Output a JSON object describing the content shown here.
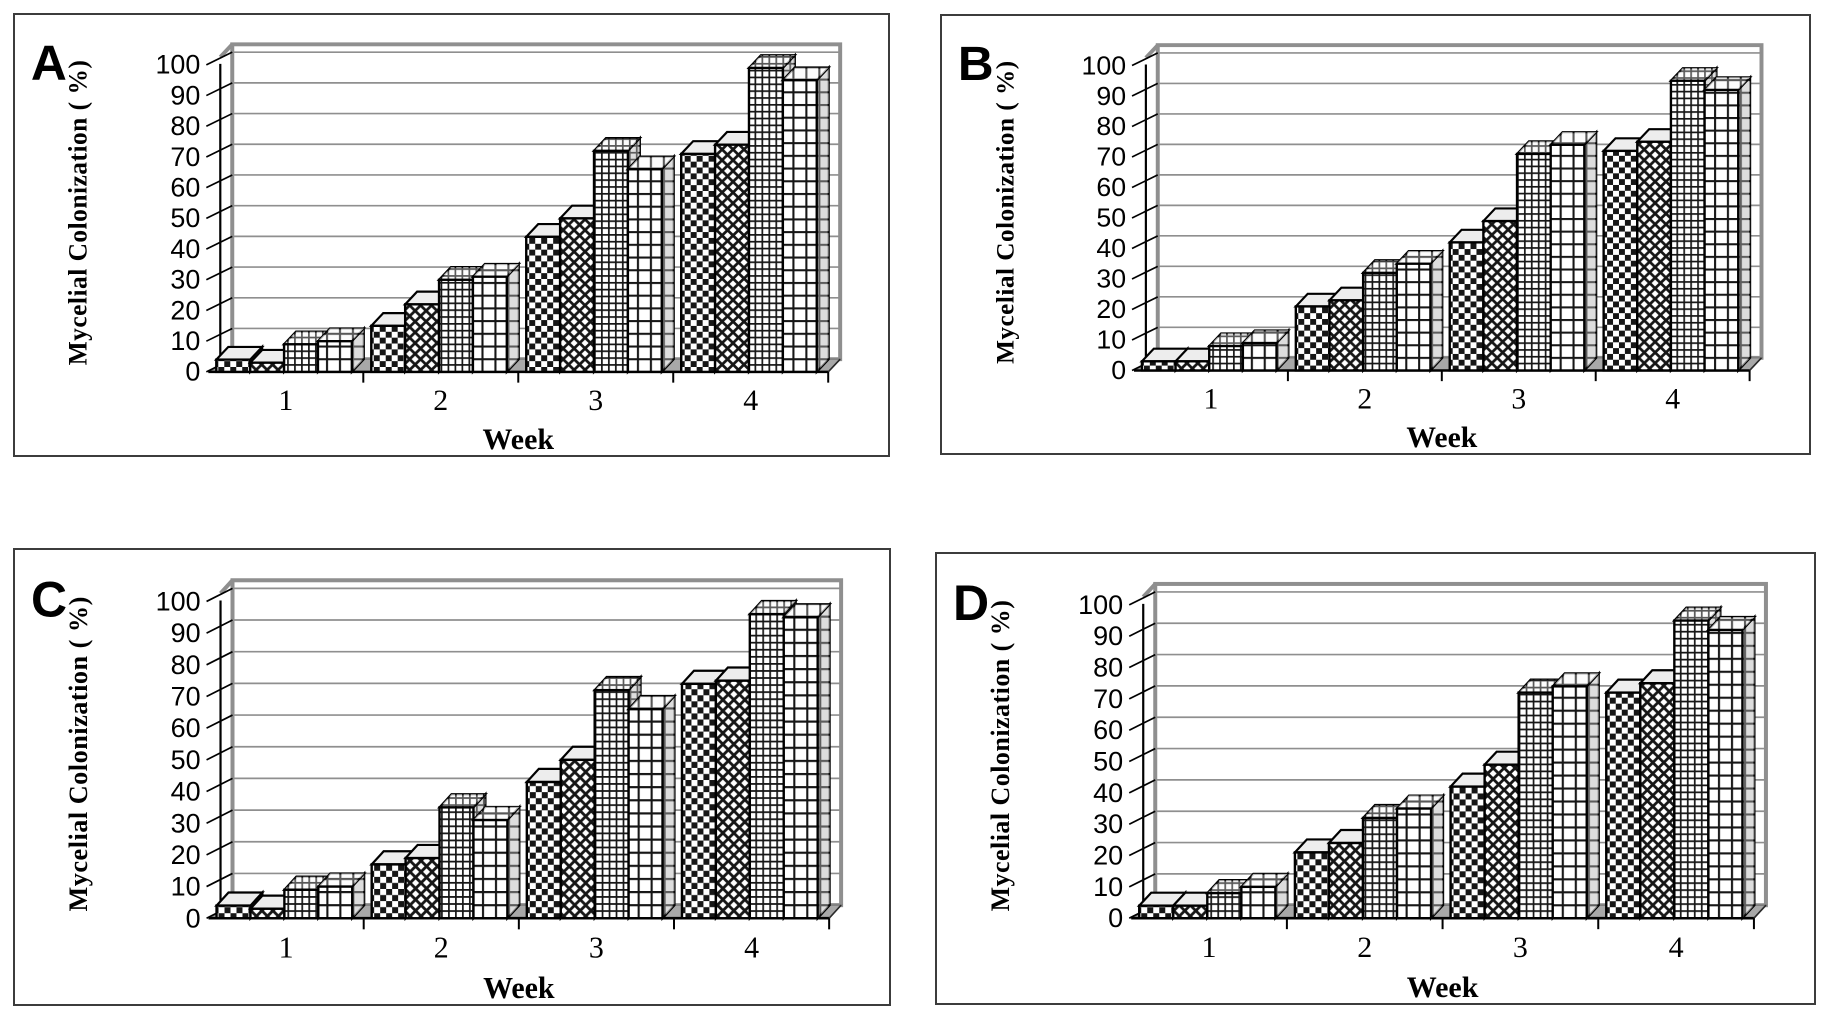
{
  "page": {
    "background": "#ffffff",
    "ink": "#000000",
    "grid_color": "#8f8f8f",
    "wall_border": "#8f8f8f",
    "floor_fill": "#a8a8a8",
    "bar_top_fill": "#ededed",
    "bar_side_fill": "#9c9c9c"
  },
  "chart_data": [
    {
      "panel_label": "A",
      "type": "bar",
      "style": "3d-column",
      "title": "",
      "xlabel": "Week",
      "ylabel": "Mycelial Colonization ( %)",
      "categories": [
        "1",
        "2",
        "3",
        "4"
      ],
      "ylim": [
        0,
        100
      ],
      "ytick_step": 10,
      "grid": true,
      "legend_position": "none",
      "series": [
        {
          "name": "Series 1 (checkerboard pattern)",
          "pattern": "checker",
          "values": [
            4,
            15,
            44,
            71
          ]
        },
        {
          "name": "Series 2 (diagonal lattice pattern)",
          "pattern": "diagonal",
          "values": [
            3,
            22,
            50,
            74
          ]
        },
        {
          "name": "Series 3 (fine grid pattern)",
          "pattern": "fine-grid",
          "values": [
            9,
            30,
            72,
            99
          ]
        },
        {
          "name": "Series 4 (large grid pattern)",
          "pattern": "large-grid",
          "values": [
            10,
            31,
            66,
            95
          ]
        }
      ]
    },
    {
      "panel_label": "B",
      "type": "bar",
      "style": "3d-column",
      "title": "",
      "xlabel": "Week",
      "ylabel": "Mycelial Colonization ( %)",
      "categories": [
        "1",
        "2",
        "3",
        "4"
      ],
      "ylim": [
        0,
        100
      ],
      "ytick_step": 10,
      "grid": true,
      "legend_position": "none",
      "series": [
        {
          "name": "Series 1 (checkerboard pattern)",
          "pattern": "checker",
          "values": [
            3,
            21,
            42,
            72
          ]
        },
        {
          "name": "Series 2 (diagonal lattice pattern)",
          "pattern": "diagonal",
          "values": [
            3,
            23,
            49,
            75
          ]
        },
        {
          "name": "Series 3 (fine grid pattern)",
          "pattern": "fine-grid",
          "values": [
            8,
            32,
            71,
            95
          ]
        },
        {
          "name": "Series 4 (large grid pattern)",
          "pattern": "large-grid",
          "values": [
            9,
            35,
            74,
            92
          ]
        }
      ]
    },
    {
      "panel_label": "C",
      "type": "bar",
      "style": "3d-column",
      "title": "",
      "xlabel": "Week",
      "ylabel": "Mycelial  Colonization ( %)",
      "categories": [
        "1",
        "2",
        "3",
        "4"
      ],
      "ylim": [
        0,
        100
      ],
      "ytick_step": 10,
      "grid": true,
      "legend_position": "none",
      "series": [
        {
          "name": "Series 1 (checkerboard pattern)",
          "pattern": "checker",
          "values": [
            4,
            17,
            43,
            74
          ]
        },
        {
          "name": "Series 2 (diagonal lattice pattern)",
          "pattern": "diagonal",
          "values": [
            3,
            19,
            50,
            75
          ]
        },
        {
          "name": "Series 3 (fine grid pattern)",
          "pattern": "fine-grid",
          "values": [
            9,
            35,
            72,
            96
          ]
        },
        {
          "name": "Series 4 (large grid pattern)",
          "pattern": "large-grid",
          "values": [
            10,
            31,
            66,
            95
          ]
        }
      ]
    },
    {
      "panel_label": "D",
      "type": "bar",
      "style": "3d-column",
      "title": "",
      "xlabel": "Week",
      "ylabel": "Mycelial Colonization ( %)",
      "categories": [
        "1",
        "2",
        "3",
        "4"
      ],
      "ylim": [
        0,
        100
      ],
      "ytick_step": 10,
      "grid": true,
      "legend_position": "none",
      "series": [
        {
          "name": "Series 1 (checkerboard pattern)",
          "pattern": "checker",
          "values": [
            4,
            21,
            42,
            72
          ]
        },
        {
          "name": "Series 2 (diagonal lattice pattern)",
          "pattern": "diagonal",
          "values": [
            4,
            24,
            49,
            75
          ]
        },
        {
          "name": "Series 3 (fine grid pattern)",
          "pattern": "fine-grid",
          "values": [
            8,
            32,
            72,
            95
          ]
        },
        {
          "name": "Series 4 (large grid pattern)",
          "pattern": "large-grid",
          "values": [
            10,
            35,
            74,
            92
          ]
        }
      ]
    }
  ]
}
